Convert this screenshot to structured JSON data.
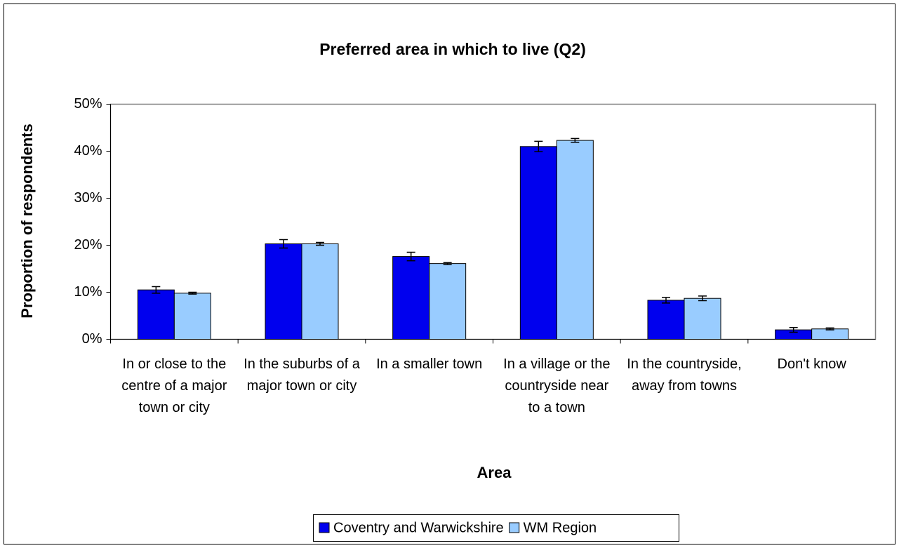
{
  "chart_data": {
    "type": "bar",
    "title": "Preferred area in which to live (Q2)",
    "x_label": "Area",
    "y_label": "Proportion of respondents",
    "categories": [
      "In or close to the centre of a major town or city",
      "In the suburbs of a major town or city",
      "In a smaller town",
      "In a village or the countryside near to a town",
      "In the countryside, away from towns",
      "Don't know"
    ],
    "series": [
      {
        "name": "Coventry and Warwickshire",
        "color": "#0000ee",
        "values": [
          10.5,
          20.3,
          17.6,
          41.0,
          8.3,
          2.0
        ],
        "errors": [
          0.7,
          0.9,
          0.9,
          1.1,
          0.6,
          0.5
        ]
      },
      {
        "name": "WM Region",
        "color": "#99ccff",
        "values": [
          9.8,
          20.3,
          16.1,
          42.3,
          8.7,
          2.2
        ],
        "errors": [
          0.2,
          0.3,
          0.2,
          0.4,
          0.5,
          0.2
        ]
      }
    ],
    "ylim": [
      0,
      50
    ],
    "yticks": [
      {
        "value": 0,
        "label": "0%"
      },
      {
        "value": 10,
        "label": "10%"
      },
      {
        "value": 20,
        "label": "20%"
      },
      {
        "value": 30,
        "label": "30%"
      },
      {
        "value": 40,
        "label": "40%"
      },
      {
        "value": 50,
        "label": "50%"
      }
    ],
    "grid": false,
    "legend": "bottom"
  }
}
